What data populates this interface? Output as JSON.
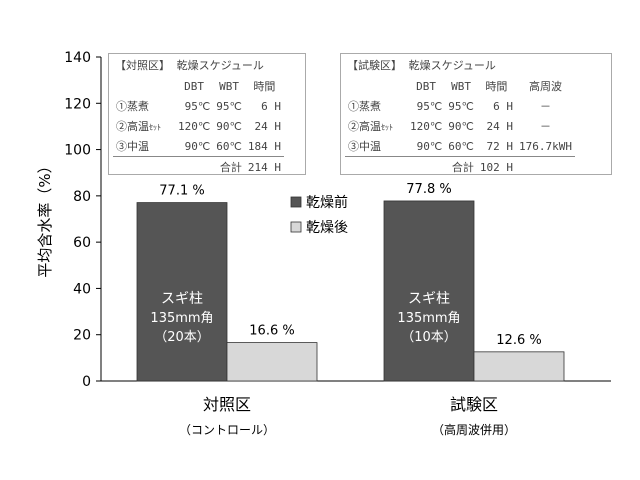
{
  "chart_data": {
    "type": "bar",
    "ylabel": "平均含水率（%）",
    "ylim": [
      0,
      140
    ],
    "yticks": [
      0,
      20,
      40,
      60,
      80,
      100,
      120,
      140
    ],
    "categories": [
      "対照区",
      "試験区"
    ],
    "category_sublabels": [
      "（コントロール）",
      "（高周波併用）"
    ],
    "series": [
      {
        "name": "乾燥前",
        "values": [
          77.1,
          77.8
        ],
        "labels": [
          "77.1 %",
          "77.8 %"
        ],
        "color": "#555555"
      },
      {
        "name": "乾燥後",
        "values": [
          16.6,
          12.6
        ],
        "labels": [
          "16.6 %",
          "12.6 %"
        ],
        "color": "#d8d8d8"
      }
    ],
    "bar_annotations": [
      {
        "line1": "スギ柱",
        "line2": "135mm角",
        "line3": "（20本）"
      },
      {
        "line1": "スギ柱",
        "line2": "135mm角",
        "line3": "（10本）"
      }
    ],
    "legend_position": "center"
  },
  "tables": {
    "control": {
      "title": "【対照区】 乾燥スケジュール",
      "headers": [
        "",
        "DBT",
        "WBT",
        "時間"
      ],
      "rows": [
        {
          "step": "①蒸煮",
          "step_suffix": "",
          "dbt": "95℃",
          "wbt": "95℃",
          "time": "6 H"
        },
        {
          "step": "②高温",
          "step_suffix": "ｾｯﾄ",
          "dbt": "120℃",
          "wbt": "90℃",
          "time": "24 H"
        },
        {
          "step": "③中温",
          "step_suffix": "",
          "dbt": "90℃",
          "wbt": "60℃",
          "time": "184 H"
        }
      ],
      "total_label": "合計",
      "total_time": "214 H"
    },
    "test": {
      "title": "【試験区】 乾燥スケジュール",
      "headers": [
        "",
        "DBT",
        "WBT",
        "時間",
        "高周波"
      ],
      "rows": [
        {
          "step": "①蒸煮",
          "step_suffix": "",
          "dbt": "95℃",
          "wbt": "95℃",
          "time": "6 H",
          "hf": "－"
        },
        {
          "step": "②高温",
          "step_suffix": "ｾｯﾄ",
          "dbt": "120℃",
          "wbt": "90℃",
          "time": "24 H",
          "hf": "－"
        },
        {
          "step": "③中温",
          "step_suffix": "",
          "dbt": "90℃",
          "wbt": "60℃",
          "time": "72 H",
          "hf": "176.7kWH"
        }
      ],
      "total_label": "合計",
      "total_time": "102 H"
    }
  }
}
